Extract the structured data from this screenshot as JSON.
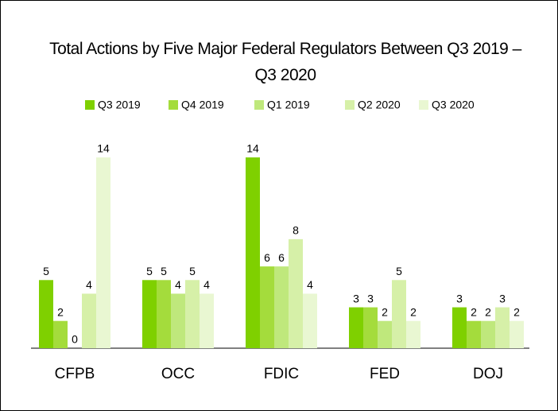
{
  "chart_data": {
    "type": "bar",
    "title": "Total Actions by Five Major Federal Regulators Between Q3 2019 – Q3 2020",
    "categories": [
      "CFPB",
      "OCC",
      "FDIC",
      "FED",
      "DOJ"
    ],
    "series": [
      {
        "name": "Q3 2019",
        "color": "#7fd000",
        "values": [
          5,
          5,
          14,
          3,
          3
        ]
      },
      {
        "name": "Q4 2019",
        "color": "#a4dc3c",
        "values": [
          2,
          5,
          6,
          3,
          2
        ]
      },
      {
        "name": "Q1 2019",
        "color": "#bfe87c",
        "values": [
          0,
          4,
          6,
          2,
          2
        ]
      },
      {
        "name": "Q2 2020",
        "color": "#d6f0a8",
        "values": [
          4,
          5,
          8,
          5,
          3
        ]
      },
      {
        "name": "Q3 2020",
        "color": "#e9f7d2",
        "values": [
          14,
          4,
          4,
          2,
          2
        ]
      }
    ]
  }
}
